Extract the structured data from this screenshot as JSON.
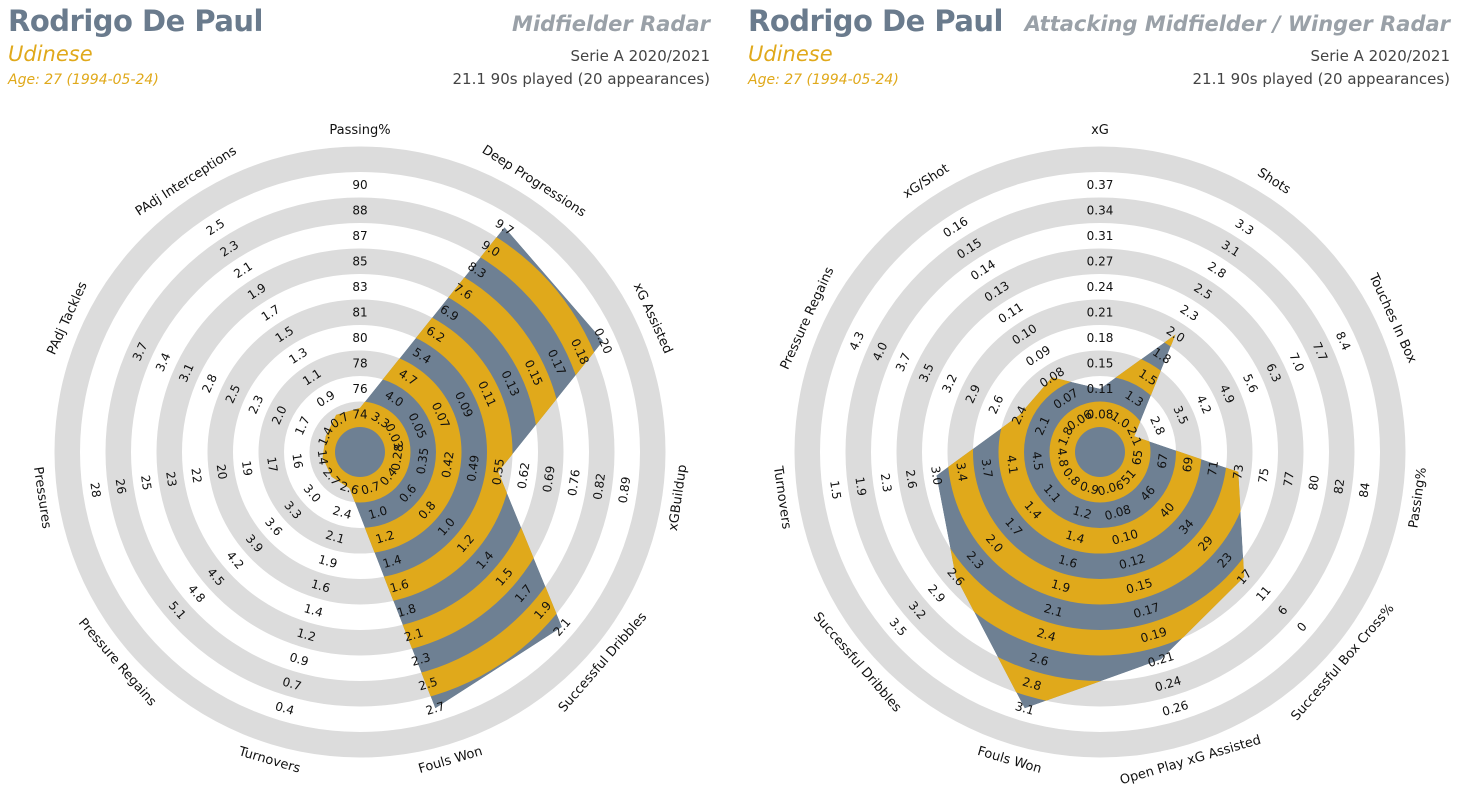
{
  "colors": {
    "ring": "#dcdcdc",
    "slate": "#6e8093",
    "gold": "#e0a91b",
    "name": "#6a7b8d",
    "title": "#9aa1a8",
    "text": "#111111"
  },
  "chart_data": [
    {
      "type": "radar",
      "player": "Rodrigo De Paul",
      "team": "Udinese",
      "age": "Age: 27 (1994-05-24)",
      "title": "Midfielder Radar",
      "season": "Serie A 2020/2021",
      "played": "21.1 90s played (20 appearances)",
      "axes": [
        {
          "name": "Passing%",
          "ticks": [
            "74",
            "76",
            "78",
            "80",
            "81",
            "83",
            "85",
            "87",
            "88",
            "90"
          ],
          "value": 74.5
        },
        {
          "name": "Deep Progressions",
          "ticks": [
            "3.3",
            "4.0",
            "4.7",
            "5.4",
            "6.2",
            "6.9",
            "7.6",
            "8.3",
            "9.0",
            "9.7"
          ],
          "value": 9.7
        },
        {
          "name": "xG Assisted",
          "ticks": [
            "0.03",
            "0.05",
            "0.07",
            "0.09",
            "0.11",
            "0.13",
            "0.15",
            "0.17",
            "0.18",
            "0.20"
          ],
          "value": 0.2
        },
        {
          "name": "xGBuildup",
          "ticks": [
            "0.28",
            "0.35",
            "0.42",
            "0.49",
            "0.55",
            "0.62",
            "0.69",
            "0.76",
            "0.82",
            "0.89"
          ],
          "value": 0.55
        },
        {
          "name": "Successful Dribbles",
          "ticks": [
            "0.4",
            "0.6",
            "0.8",
            "1.0",
            "1.2",
            "1.4",
            "1.5",
            "1.7",
            "1.9",
            "2.1"
          ],
          "value": 2.1
        },
        {
          "name": "Fouls Won",
          "ticks": [
            "0.7",
            "1.0",
            "1.2",
            "1.4",
            "1.6",
            "1.8",
            "2.1",
            "2.3",
            "2.5",
            "2.7"
          ],
          "value": 2.7
        },
        {
          "name": "Turnovers",
          "ticks": [
            "2.6",
            "2.4",
            "2.1",
            "1.9",
            "1.6",
            "1.4",
            "1.2",
            "0.9",
            "0.7",
            "0.4"
          ],
          "value": 2.6
        },
        {
          "name": "Pressure Regains",
          "ticks": [
            "2.7",
            "3.0",
            "3.3",
            "3.6",
            "3.9",
            "4.2",
            "4.5",
            "4.8",
            "5.1",
            ""
          ],
          "value": 2.7
        },
        {
          "name": "Pressures",
          "ticks": [
            "14",
            "16",
            "17",
            "19",
            "20",
            "22",
            "23",
            "25",
            "26",
            "28"
          ],
          "value": 14
        },
        {
          "name": "PAdj Tackles",
          "ticks": [
            "1.4",
            "1.7",
            "2.0",
            "2.3",
            "2.5",
            "2.8",
            "3.1",
            "3.4",
            "3.7",
            ""
          ],
          "value": 1.4
        },
        {
          "name": "PAdj Interceptions",
          "ticks": [
            "0.7",
            "0.9",
            "1.1",
            "1.3",
            "1.5",
            "1.7",
            "1.9",
            "2.1",
            "2.3",
            "2.5"
          ],
          "value": 0.75
        }
      ]
    },
    {
      "type": "radar",
      "player": "Rodrigo De Paul",
      "team": "Udinese",
      "age": "Age: 27 (1994-05-24)",
      "title": "Attacking Midfielder / Winger Radar",
      "season": "Serie A 2020/2021",
      "played": "21.1 90s played (20 appearances)",
      "axes": [
        {
          "name": "xG",
          "ticks": [
            "0.08",
            "0.11",
            "0.15",
            "0.18",
            "0.21",
            "0.24",
            "0.27",
            "0.31",
            "0.34",
            "0.37"
          ],
          "value": 0.11
        },
        {
          "name": "Shots",
          "ticks": [
            "1.0",
            "1.3",
            "1.5",
            "1.8",
            "2.0",
            "2.3",
            "2.5",
            "2.8",
            "3.1",
            "3.3"
          ],
          "value": 2.0
        },
        {
          "name": "Touches In Box",
          "ticks": [
            "2.1",
            "2.8",
            "3.5",
            "4.2",
            "4.9",
            "5.6",
            "6.3",
            "7.0",
            "7.7",
            "8.4"
          ],
          "value": 2.1
        },
        {
          "name": "Passing%",
          "ticks": [
            "65",
            "67",
            "69",
            "71",
            "73",
            "75",
            "77",
            "80",
            "82",
            "84"
          ],
          "value": 73
        },
        {
          "name": "Successful Box Cross%",
          "ticks": [
            "51",
            "46",
            "40",
            "34",
            "29",
            "23",
            "17",
            "11",
            "6",
            "0"
          ],
          "value": 17
        },
        {
          "name": "Open Play xG Assisted",
          "ticks": [
            "0.06",
            "0.08",
            "0.10",
            "0.12",
            "0.15",
            "0.17",
            "0.19",
            "0.21",
            "0.24",
            "0.26"
          ],
          "value": 0.21
        },
        {
          "name": "Fouls Won",
          "ticks": [
            "0.9",
            "1.2",
            "1.4",
            "1.6",
            "1.9",
            "2.1",
            "2.4",
            "2.6",
            "2.8",
            "3.1"
          ],
          "value": 3.1
        },
        {
          "name": "Successful Dribbles",
          "ticks": [
            "0.8",
            "1.1",
            "1.4",
            "1.7",
            "2.0",
            "2.3",
            "2.6",
            "2.9",
            "3.2",
            "3.5"
          ],
          "value": 2.6
        },
        {
          "name": "Turnovers",
          "ticks": [
            "4.8",
            "4.5",
            "4.1",
            "3.7",
            "3.4",
            "3.0",
            "2.6",
            "2.3",
            "1.9",
            "1.5"
          ],
          "value": 3.0
        },
        {
          "name": "Pressure Regains",
          "ticks": [
            "1.8",
            "2.1",
            "2.4",
            "2.6",
            "2.9",
            "3.2",
            "3.5",
            "3.7",
            "4.0",
            "4.3"
          ],
          "value": 2.4
        },
        {
          "name": "xG/Shot",
          "ticks": [
            "0.06",
            "0.07",
            "0.08",
            "0.09",
            "0.10",
            "0.11",
            "0.13",
            "0.14",
            "0.15",
            "0.16"
          ],
          "value": 0.08
        }
      ]
    }
  ]
}
